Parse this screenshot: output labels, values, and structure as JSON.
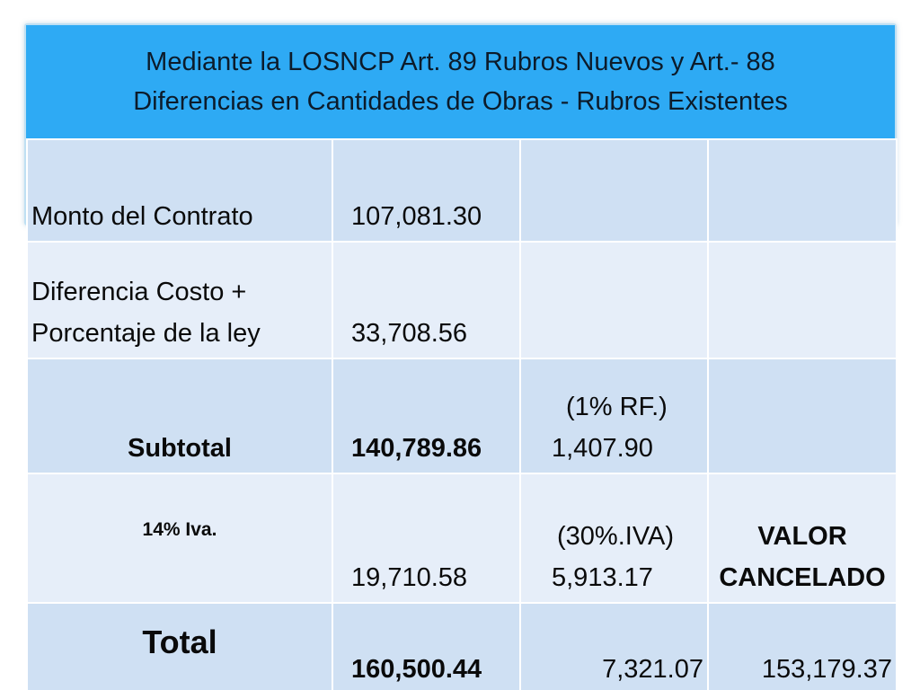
{
  "title": {
    "line1": "Mediante la LOSNCP Art. 89 Rubros Nuevos  y  Art.- 88",
    "line2": "Diferencias en Cantidades de Obras - Rubros Existentes"
  },
  "table": {
    "rows": [
      {
        "label": "Monto del Contrato",
        "amount": "107,081.30",
        "retention_label": "",
        "retention_value": "",
        "paid": ""
      },
      {
        "label_line1": "Diferencia Costo +",
        "label_line2": "Porcentaje de la ley",
        "amount": "33,708.56",
        "retention_label": "",
        "retention_value": "",
        "paid": ""
      },
      {
        "label": "Subtotal",
        "amount": "140,789.86",
        "retention_label": "(1% RF.)",
        "retention_value": "1,407.90",
        "paid": ""
      },
      {
        "label": "14% Iva.",
        "amount": "19,710.58",
        "retention_label": "(30%.IVA)",
        "retention_value": "5,913.17",
        "paid_line1": "VALOR",
        "paid_line2": "CANCELADO"
      },
      {
        "label": "Total",
        "amount": "160,500.44",
        "retention_value": "7,321.07",
        "paid": "153,179.37"
      }
    ]
  },
  "colors": {
    "header_background": "#2eaaf4",
    "row_dark": "#cfe0f3",
    "row_light": "#e6eef9"
  }
}
